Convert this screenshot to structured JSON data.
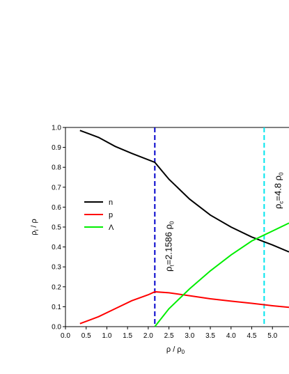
{
  "chart_data": {
    "type": "line",
    "xlabel": [
      "ρ / ρ",
      "0"
    ],
    "ylabel": [
      "ρ",
      "i",
      " / ρ"
    ],
    "xlim": [
      0,
      5.4
    ],
    "ylim": [
      0,
      1.0
    ],
    "xticks": [
      {
        "value": 0,
        "label": "0.0"
      },
      {
        "value": 0.5,
        "label": "0.5"
      },
      {
        "value": 1,
        "label": "1.0"
      },
      {
        "value": 1.5,
        "label": "1.5"
      },
      {
        "value": 2,
        "label": "2.0"
      },
      {
        "value": 2.5,
        "label": "2.5"
      },
      {
        "value": 3,
        "label": "3.0"
      },
      {
        "value": 3.5,
        "label": "3.5"
      },
      {
        "value": 4,
        "label": "4.0"
      },
      {
        "value": 4.5,
        "label": "4.5"
      },
      {
        "value": 5,
        "label": "5.0"
      }
    ],
    "yticks": [
      {
        "value": 0,
        "label": "0.0"
      },
      0.1,
      0.2,
      0.3,
      0.4,
      0.5,
      0.6,
      0.7,
      0.8,
      0.9,
      {
        "value": 1,
        "label": "1.0"
      }
    ],
    "series": [
      {
        "name": "n",
        "color": "#000000",
        "x": [
          0.35,
          0.8,
          1.2,
          1.6,
          2.1586,
          2.5,
          3,
          3.5,
          4,
          4.5,
          5,
          5.4
        ],
        "values": [
          0.985,
          0.95,
          0.905,
          0.87,
          0.825,
          0.74,
          0.64,
          0.56,
          0.5,
          0.45,
          0.41,
          0.375
        ]
      },
      {
        "name": "p",
        "color": "#ff0000",
        "x": [
          0.35,
          0.8,
          1.2,
          1.6,
          2.0,
          2.1586,
          2.5,
          3,
          3.5,
          4,
          4.5,
          5,
          5.4
        ],
        "values": [
          0.015,
          0.05,
          0.09,
          0.13,
          0.16,
          0.175,
          0.17,
          0.155,
          0.14,
          0.128,
          0.117,
          0.105,
          0.097
        ]
      },
      {
        "name": "Λ",
        "color": "#00ee00",
        "x": [
          2.1586,
          2.5,
          3,
          3.5,
          4,
          4.5,
          5,
          5.4
        ],
        "values": [
          0.0,
          0.09,
          0.19,
          0.28,
          0.36,
          0.43,
          0.48,
          0.52
        ]
      }
    ],
    "vlines": [
      {
        "x": 2.1586,
        "color": "#0000cc",
        "label": [
          "ρ",
          "t",
          "=2.1586 ρ",
          "0"
        ]
      },
      {
        "x": 4.8,
        "color": "#00e5ee",
        "label": [
          "ρ",
          "c",
          "=4.8 ρ",
          "0"
        ]
      }
    ]
  }
}
